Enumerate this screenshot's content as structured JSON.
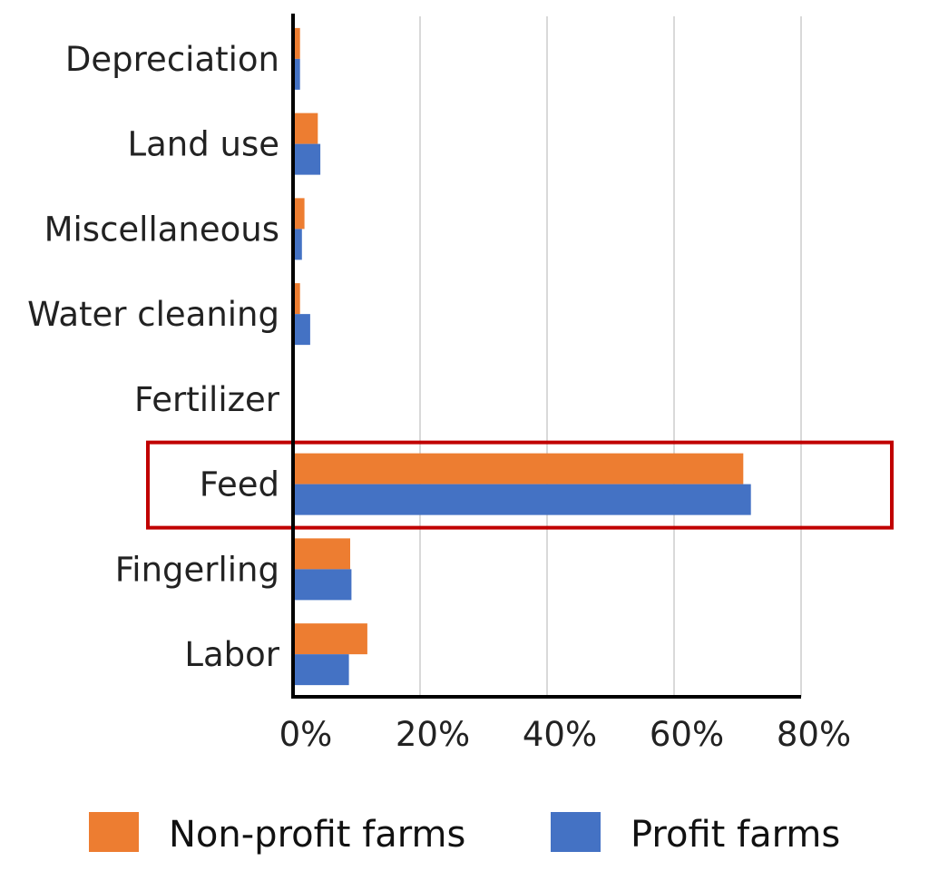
{
  "chart_data": {
    "type": "bar",
    "orientation": "horizontal",
    "categories": [
      "Depreciation",
      "Land use",
      "Miscellaneous",
      "Water cleaning",
      "Fertilizer",
      "Feed",
      "Fingerling",
      "Labor"
    ],
    "series": [
      {
        "name": "Non-profit farms",
        "color": "#ED7D31",
        "values": [
          1.1,
          3.9,
          1.8,
          1.1,
          0,
          70.9,
          9.0,
          11.7
        ]
      },
      {
        "name": "Profit farms",
        "color": "#4472C4",
        "values": [
          1.1,
          4.3,
          1.4,
          2.7,
          0,
          72.1,
          9.2,
          8.8
        ]
      }
    ],
    "xlim": [
      0,
      80
    ],
    "xticks": [
      "0%",
      "20%",
      "40%",
      "60%",
      "80%"
    ],
    "xtick_values": [
      0,
      20,
      40,
      60,
      80
    ],
    "grid": "vertical",
    "legend_position": "bottom",
    "highlight": {
      "category": "Feed",
      "color": "#C00000"
    }
  }
}
